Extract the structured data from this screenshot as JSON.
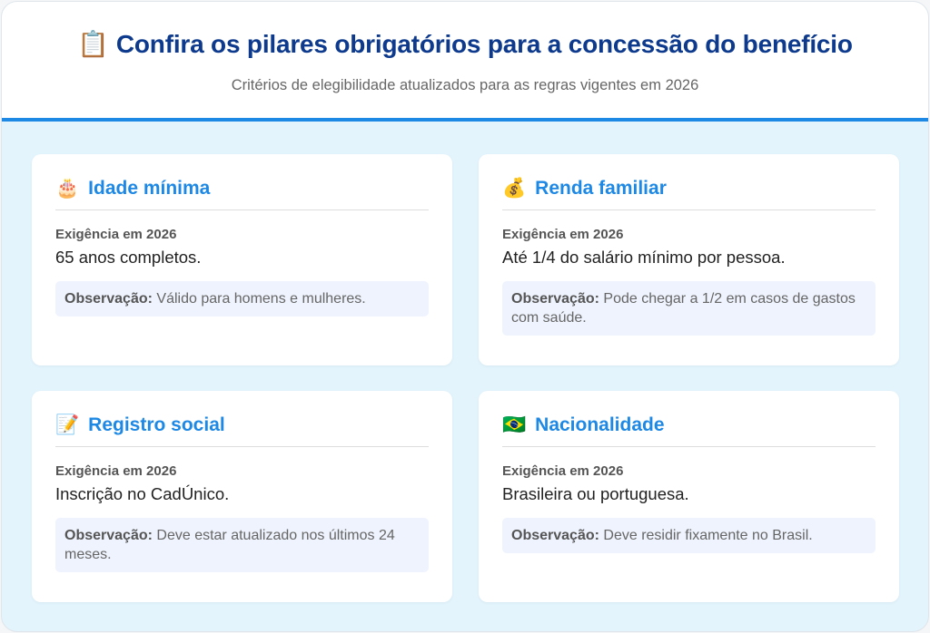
{
  "header": {
    "icon": "clipboard-icon",
    "icon_glyph": "📋",
    "title": "Confira os pilares obrigatórios para a concessão do benefício",
    "subtitle": "Critérios de elegibilidade atualizados para as regras vigentes em 2026"
  },
  "cards": [
    {
      "icon": "birthday-cake-icon",
      "glyph": "🎂",
      "title": "Idade mínima",
      "label": "Exigência em 2026",
      "value": "65 anos completos.",
      "obs_label": "Observação:",
      "obs": "Válido para homens e mulheres."
    },
    {
      "icon": "money-bag-icon",
      "glyph": "💰",
      "title": "Renda familiar",
      "label": "Exigência em 2026",
      "value": "Até 1/4 do salário mínimo por pessoa.",
      "obs_label": "Observação:",
      "obs": "Pode chegar a 1/2 em casos de gastos com saúde."
    },
    {
      "icon": "memo-icon",
      "glyph": "📝",
      "title": "Registro social",
      "label": "Exigência em 2026",
      "value": "Inscrição no CadÚnico.",
      "obs_label": "Observação:",
      "obs": "Deve estar atualizado nos últimos 24 meses."
    },
    {
      "icon": "brazil-flag-icon",
      "glyph": "🇧🇷",
      "title": "Nacionalidade",
      "label": "Exigência em 2026",
      "value": "Brasileira ou portuguesa.",
      "obs_label": "Observação:",
      "obs": "Deve residir fixamente no Brasil."
    }
  ]
}
